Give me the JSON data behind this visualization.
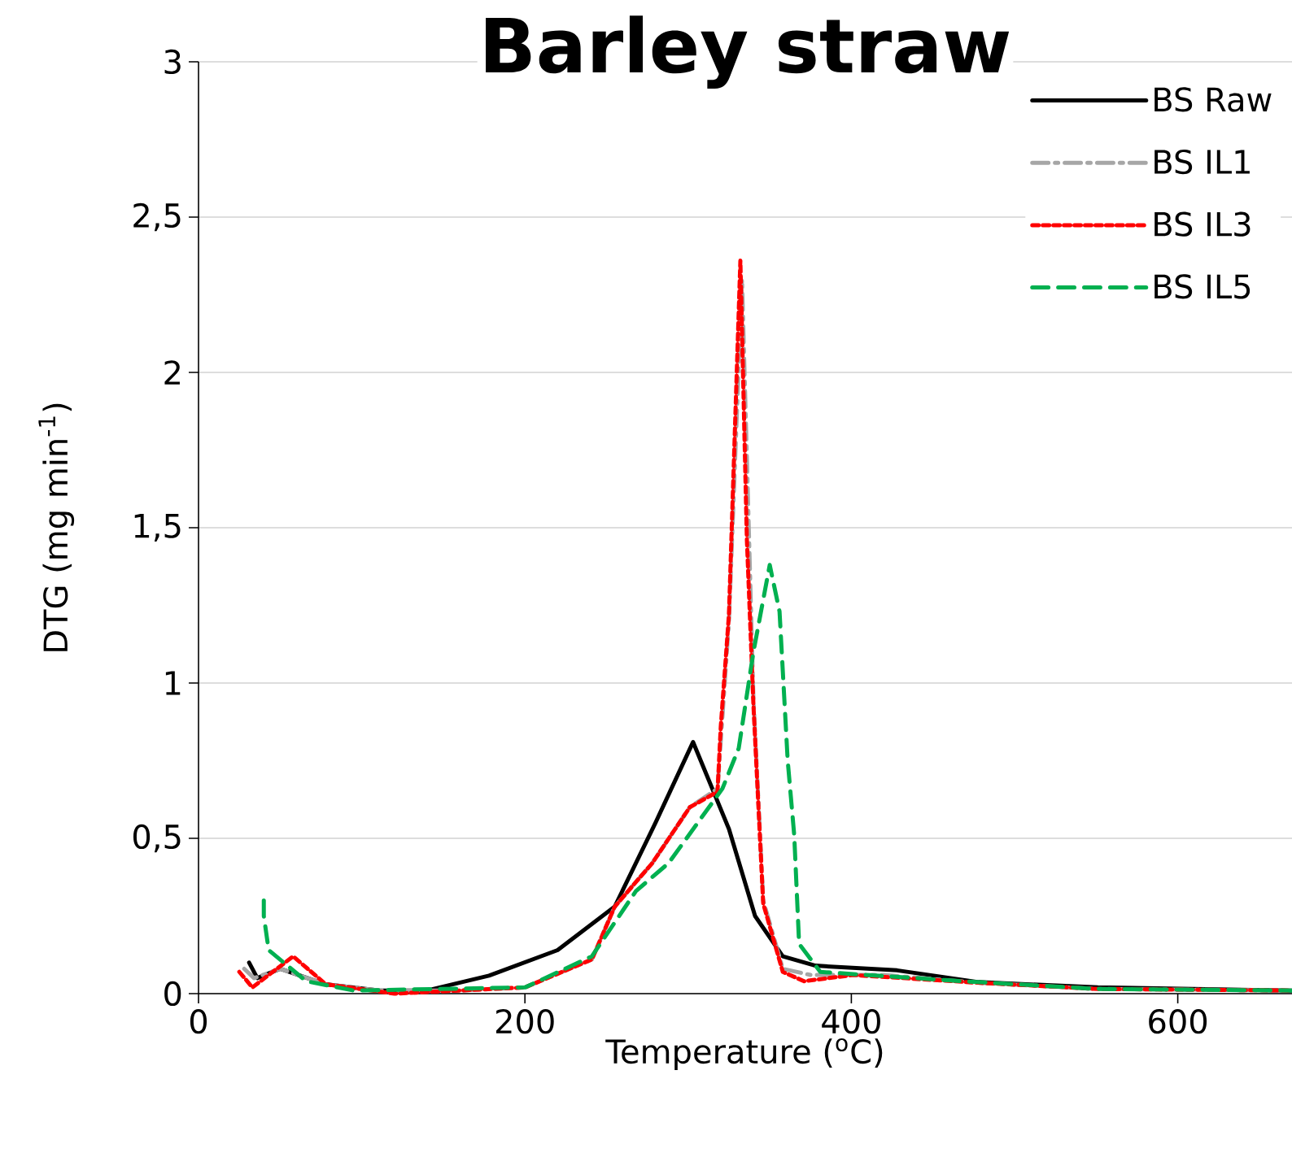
{
  "chart_data": {
    "type": "line",
    "title": "Barley straw",
    "xlabel": "Temperature ($^{o}$C)",
    "ylabel": "DTG (mg min$^{-1}$)",
    "xlim": [
      0,
      670
    ],
    "ylim": [
      0,
      3
    ],
    "xticks": [
      0,
      200,
      400,
      600
    ],
    "yticks": [
      0,
      {
        "value": 0.5,
        "label": "0,5"
      },
      1,
      {
        "value": 1.5,
        "label": "1,5"
      },
      2,
      {
        "value": 2.5,
        "label": "2,5"
      },
      3
    ],
    "grid": "y",
    "legend": "top right",
    "series": [
      {
        "name": "BS Raw",
        "color": "#000000",
        "line_style": "solid",
        "x": [
          31,
          36,
          50,
          78,
          111,
          140,
          178,
          220,
          255,
          280,
          303,
          325,
          341,
          358,
          378,
          428,
          478,
          551,
          670
        ],
        "values": [
          0.1,
          0.05,
          0.08,
          0.03,
          0.01,
          0.01,
          0.058,
          0.14,
          0.28,
          0.55,
          0.81,
          0.53,
          0.25,
          0.12,
          0.09,
          0.075,
          0.037,
          0.02,
          0.01
        ]
      },
      {
        "name": "BS IL1",
        "color": "#a6a6a6",
        "line_style": "dashdot",
        "x": [
          28,
          34,
          50,
          78,
          111,
          160,
          200,
          241,
          255,
          278,
          301,
          318,
          325,
          333,
          340,
          346,
          358,
          375,
          420,
          478,
          551,
          670
        ],
        "values": [
          0.08,
          0.05,
          0.08,
          0.03,
          0.01,
          0.01,
          0.02,
          0.11,
          0.28,
          0.42,
          0.6,
          0.66,
          1.2,
          2.3,
          0.95,
          0.3,
          0.08,
          0.06,
          0.06,
          0.035,
          0.015,
          0.01
        ]
      },
      {
        "name": "BS IL3",
        "color": "#ff0000",
        "line_style": "dotted",
        "x": [
          25,
          33,
          58,
          78,
          120,
          200,
          241,
          255,
          278,
          301,
          318,
          320,
          325,
          332,
          336,
          340,
          346,
          358,
          371,
          401,
          478,
          551,
          670
        ],
        "values": [
          0.07,
          0.02,
          0.12,
          0.03,
          0.0,
          0.02,
          0.11,
          0.28,
          0.42,
          0.6,
          0.65,
          0.86,
          1.22,
          2.36,
          1.46,
          0.93,
          0.29,
          0.07,
          0.04,
          0.06,
          0.035,
          0.015,
          0.01
        ]
      },
      {
        "name": "BS IL5",
        "color": "#00b050",
        "line_style": "dashed",
        "x": [
          40,
          40,
          43,
          66,
          95,
          200,
          241,
          268,
          288,
          321,
          331,
          340,
          350,
          356,
          361,
          365,
          368,
          381,
          468,
          551,
          670
        ],
        "values": [
          0.3,
          0.25,
          0.14,
          0.04,
          0.01,
          0.02,
          0.12,
          0.33,
          0.42,
          0.66,
          0.79,
          1.1,
          1.38,
          1.23,
          0.75,
          0.51,
          0.16,
          0.07,
          0.04,
          0.015,
          0.01
        ]
      }
    ]
  }
}
